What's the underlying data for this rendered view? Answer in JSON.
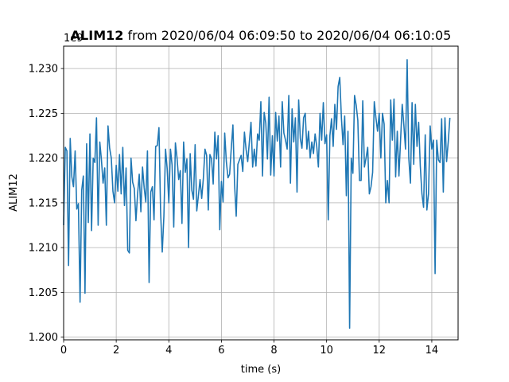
{
  "chart_data": {
    "type": "line",
    "title_bold": "ALIM12",
    "title_rest": " from 2020/06/04 06:09:50 to 2020/06/04 06:10:05",
    "xlabel": "time (s)",
    "ylabel": "ALIM12",
    "offset_text": "1e9",
    "xlim": [
      0,
      15
    ],
    "ylim": [
      1.1997,
      1.2325
    ],
    "x_ticks": [
      0,
      2,
      4,
      6,
      8,
      10,
      12,
      14
    ],
    "x_tick_labels": [
      "0",
      "2",
      "4",
      "6",
      "8",
      "10",
      "12",
      "14"
    ],
    "y_ticks": [
      1.2,
      1.205,
      1.21,
      1.215,
      1.22,
      1.225,
      1.23
    ],
    "y_tick_labels": [
      "1.200",
      "1.205",
      "1.210",
      "1.215",
      "1.220",
      "1.225",
      "1.230"
    ],
    "grid": true,
    "line_color": "#1f77b4",
    "series": [
      {
        "x_start": 0,
        "x_step": 0.0625,
        "values": [
          1.2125,
          1.2212,
          1.2208,
          1.208,
          1.2222,
          1.2179,
          1.2168,
          1.2208,
          1.2143,
          1.2149,
          1.2039,
          1.2164,
          1.218,
          1.2049,
          1.2216,
          1.2128,
          1.2227,
          1.2119,
          1.22,
          1.2195,
          1.2245,
          1.2125,
          1.2218,
          1.2198,
          1.2172,
          1.2189,
          1.2125,
          1.2236,
          1.2211,
          1.22,
          1.2163,
          1.215,
          1.2192,
          1.2163,
          1.2204,
          1.216,
          1.2212,
          1.2147,
          1.2189,
          1.2097,
          1.2094,
          1.22,
          1.2173,
          1.2166,
          1.213,
          1.216,
          1.2182,
          1.214,
          1.219,
          1.2167,
          1.2151,
          1.2208,
          1.2061,
          1.2162,
          1.2168,
          1.2131,
          1.2213,
          1.2214,
          1.2234,
          1.214,
          1.2095,
          1.2135,
          1.221,
          1.2188,
          1.215,
          1.221,
          1.2192,
          1.2123,
          1.2217,
          1.22,
          1.2176,
          1.2186,
          1.2127,
          1.2218,
          1.2184,
          1.2199,
          1.21,
          1.2205,
          1.2164,
          1.2154,
          1.2215,
          1.2141,
          1.2158,
          1.2176,
          1.2155,
          1.2177,
          1.221,
          1.2203,
          1.2142,
          1.2204,
          1.2199,
          1.2171,
          1.2229,
          1.2199,
          1.2225,
          1.212,
          1.2174,
          1.2151,
          1.2228,
          1.2196,
          1.2178,
          1.2182,
          1.2211,
          1.2237,
          1.2171,
          1.2135,
          1.2193,
          1.2198,
          1.2203,
          1.2185,
          1.2229,
          1.221,
          1.2196,
          1.2218,
          1.224,
          1.219,
          1.221,
          1.2191,
          1.2227,
          1.222,
          1.2263,
          1.218,
          1.2251,
          1.2239,
          1.2199,
          1.2268,
          1.2181,
          1.2225,
          1.218,
          1.2251,
          1.2219,
          1.2247,
          1.219,
          1.2263,
          1.2228,
          1.222,
          1.221,
          1.227,
          1.2172,
          1.2255,
          1.2218,
          1.2245,
          1.2162,
          1.2265,
          1.2222,
          1.2211,
          1.2245,
          1.225,
          1.221,
          1.223,
          1.22,
          1.2218,
          1.2205,
          1.2227,
          1.2213,
          1.219,
          1.225,
          1.222,
          1.2262,
          1.2216,
          1.2226,
          1.2131,
          1.2225,
          1.2244,
          1.2213,
          1.226,
          1.2232,
          1.228,
          1.229,
          1.2245,
          1.2215,
          1.2247,
          1.2158,
          1.223,
          1.201,
          1.22,
          1.2183,
          1.227,
          1.2259,
          1.2242,
          1.2175,
          1.2175,
          1.2264,
          1.219,
          1.22,
          1.2212,
          1.216,
          1.2168,
          1.2184,
          1.2263,
          1.2245,
          1.223,
          1.225,
          1.22,
          1.225,
          1.2238,
          1.215,
          1.2175,
          1.215,
          1.2265,
          1.222,
          1.2266,
          1.2179,
          1.223,
          1.218,
          1.222,
          1.226,
          1.2237,
          1.221,
          1.231,
          1.22,
          1.2172,
          1.2262,
          1.2193,
          1.226,
          1.2213,
          1.224,
          1.2191,
          1.216,
          1.2145,
          1.2226,
          1.2142,
          1.216,
          1.2236,
          1.221,
          1.222,
          1.2071,
          1.222,
          1.2198,
          1.2195,
          1.2244,
          1.2162,
          1.2245,
          1.2196,
          1.2218,
          1.2245
        ]
      }
    ]
  }
}
